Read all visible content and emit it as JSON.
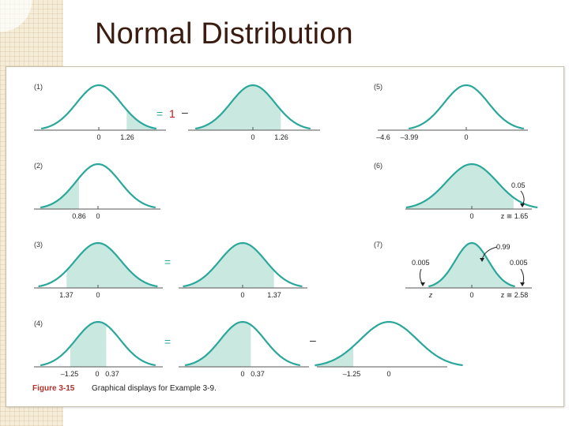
{
  "slide": {
    "title": "Normal Distribution"
  },
  "figure": {
    "caption_label": "Figure 3-15",
    "caption_text": "Graphical displays for Example 3-9.",
    "curve_color": "#2aa79b",
    "fill_color": "#c9e8df",
    "accent_color": "#c01818",
    "panels": [
      {
        "id": "1",
        "label": "(1)",
        "tick_labels": [
          "0",
          "1.26"
        ],
        "shade": [
          1.26,
          4.0
        ]
      },
      {
        "id": "1b",
        "label": "",
        "tick_labels": [
          "0",
          "1.26"
        ],
        "shade": [
          -4.0,
          1.26
        ]
      },
      {
        "id": "5",
        "label": "(5)",
        "tick_labels": [
          "–4.6",
          "–3.99",
          "0"
        ],
        "shade": [
          -4.6,
          -3.99
        ]
      },
      {
        "id": "2",
        "label": "(2)",
        "tick_labels": [
          "0.86",
          "0"
        ],
        "shade": [
          -4.0,
          -0.86
        ]
      },
      {
        "id": "6",
        "label": "(6)",
        "tick_labels": [
          "0",
          "z ≅ 1.65"
        ],
        "shade": [
          -4.0,
          1.65
        ],
        "annotations": [
          "0.05"
        ]
      },
      {
        "id": "3",
        "label": "(3)",
        "tick_labels": [
          "1.37",
          "0"
        ],
        "shade": [
          -1.37,
          4.0
        ]
      },
      {
        "id": "3b",
        "label": "",
        "tick_labels": [
          "0",
          "1.37"
        ],
        "shade": [
          -4.0,
          1.37
        ]
      },
      {
        "id": "7",
        "label": "(7)",
        "tick_labels": [
          "z",
          "0",
          "z ≅ 2.58"
        ],
        "shade": [
          -2.58,
          2.58
        ],
        "annotations": [
          "0.005",
          "0.99",
          "0.005"
        ]
      },
      {
        "id": "4",
        "label": "(4)",
        "tick_labels": [
          "–1.25",
          "0",
          "0.37"
        ],
        "shade": [
          -1.25,
          0.37
        ]
      },
      {
        "id": "4b",
        "label": "",
        "tick_labels": [
          "0",
          "0.37"
        ],
        "shade": [
          -4.0,
          0.37
        ]
      },
      {
        "id": "4c",
        "label": "",
        "tick_labels": [
          "–1.25",
          "0"
        ],
        "shade": [
          -4.0,
          -1.25
        ]
      }
    ],
    "operators": {
      "eq1": "=",
      "one": "1",
      "minus1": "–",
      "eq3": "=",
      "eq4": "=",
      "minus4": "–"
    }
  }
}
